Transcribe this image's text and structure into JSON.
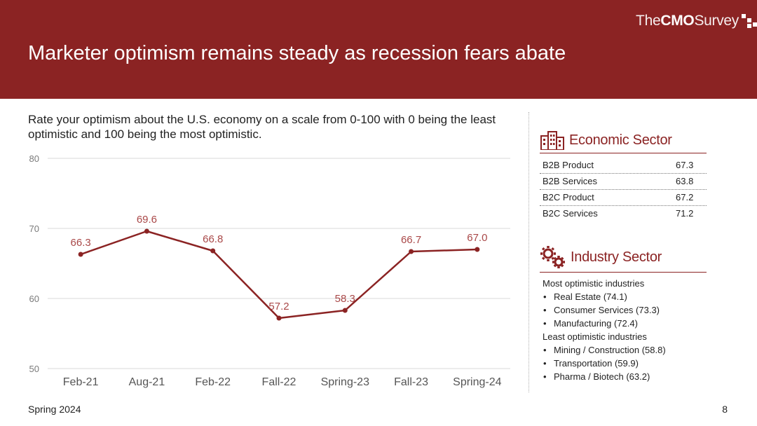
{
  "header": {
    "logo_the": "The",
    "logo_cmo": "CMO",
    "logo_survey": "Survey",
    "title": "Marketer optimism remains steady as recession fears abate",
    "background": "#8b2323"
  },
  "question": "Rate your optimism about the U.S. economy on a scale from 0-100 with 0 being the least optimistic and 100 being the most optimistic.",
  "chart_data": {
    "type": "line",
    "categories": [
      "Feb-21",
      "Aug-21",
      "Feb-22",
      "Fall-22",
      "Spring-23",
      "Fall-23",
      "Spring-24"
    ],
    "values": [
      66.3,
      69.6,
      66.8,
      57.2,
      58.3,
      66.7,
      67.0
    ],
    "labels": [
      "66.3",
      "69.6",
      "66.8",
      "57.2",
      "58.3",
      "66.7",
      "67.0"
    ],
    "ylim": [
      50,
      80
    ],
    "yticks": [
      50,
      60,
      70,
      80
    ],
    "grid": true,
    "color": "#8b2323",
    "title": "",
    "xlabel": "",
    "ylabel": ""
  },
  "economic_sector": {
    "icon": "buildings-icon",
    "label": "Economic Sector",
    "rows": [
      {
        "name": "B2B Product",
        "value": "67.3"
      },
      {
        "name": "B2B Services",
        "value": "63.8"
      },
      {
        "name": "B2C Product",
        "value": "67.2"
      },
      {
        "name": "B2C Services",
        "value": "71.2"
      }
    ]
  },
  "industry_sector": {
    "icon": "gears-icon",
    "label": "Industry Sector",
    "most_heading": "Most optimistic industries",
    "most": [
      "Real Estate (74.1)",
      "Consumer Services (73.3)",
      "Manufacturing (72.4)"
    ],
    "least_heading": "Least optimistic industries",
    "least": [
      "Mining / Construction (58.8)",
      "Transportation (59.9)",
      "Pharma / Biotech (63.2)"
    ]
  },
  "footer": {
    "left": "Spring 2024",
    "page": "8"
  }
}
